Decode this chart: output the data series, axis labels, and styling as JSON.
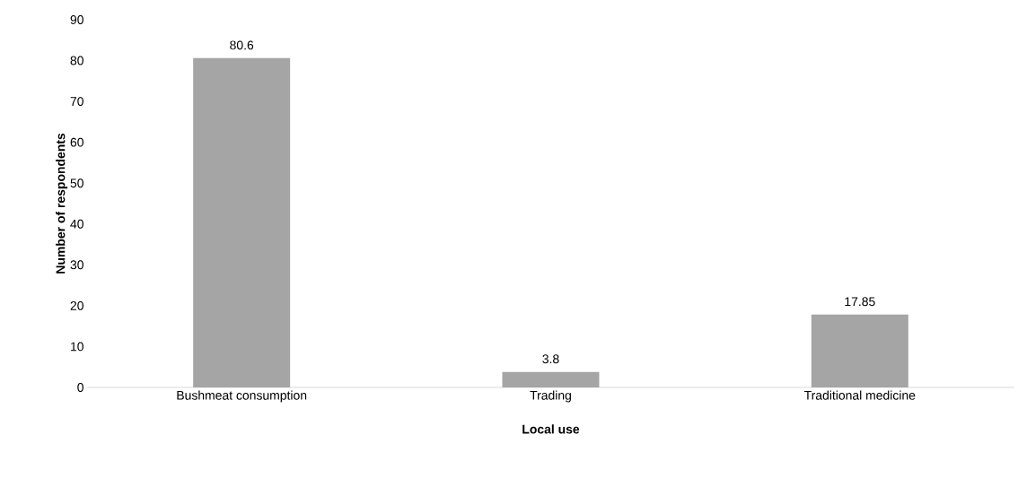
{
  "chart_data": {
    "type": "bar",
    "xlabel": "Local use",
    "ylabel": "Number of respondents",
    "categories": [
      "Bushmeat consumption",
      "Trading",
      "Traditional medicine"
    ],
    "values": [
      80.6,
      3.8,
      17.85
    ],
    "color": "#a5a5a5",
    "ylim": [
      0,
      90
    ],
    "yticks": [
      0,
      10,
      20,
      30,
      40,
      50,
      60,
      70,
      80,
      90
    ],
    "data_labels": true
  }
}
